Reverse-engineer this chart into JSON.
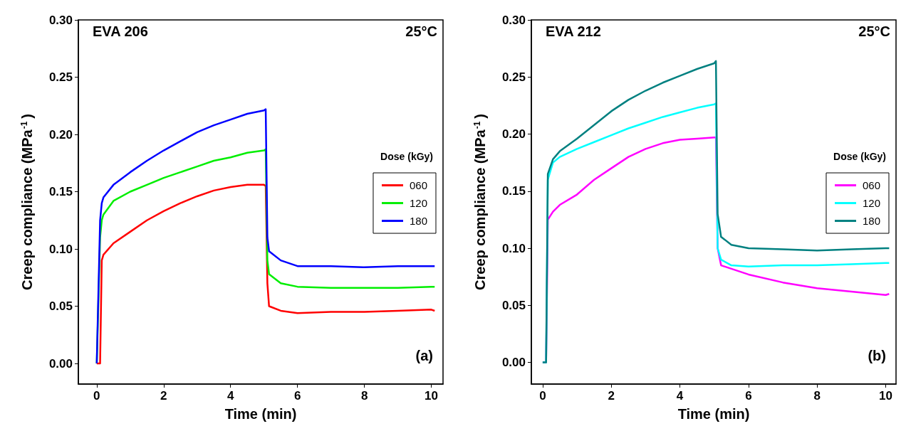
{
  "chart_data": [
    {
      "type": "line",
      "xlabel": "Time (min)",
      "ylabel": "Creep compliance (MPa$^{-1}$)",
      "legend_title": "Dose (kGy)",
      "legend": "right",
      "grid": false,
      "marker": "none",
      "line_style": "solid",
      "annotations": [
        "EVA 206",
        "25°C",
        "(a)"
      ],
      "xlim": [
        -0.55,
        10.35
      ],
      "xticks": [
        0,
        2,
        4,
        6,
        8,
        10
      ],
      "ylim": [
        -0.018,
        0.3
      ],
      "yticks": [
        {
          "value": 0,
          "label": "0.00"
        },
        {
          "value": 0.05,
          "label": "0.05"
        },
        {
          "value": 0.1,
          "label": "0.10"
        },
        {
          "value": 0.15,
          "label": "0.15"
        },
        {
          "value": 0.2,
          "label": "0.20"
        },
        {
          "value": 0.25,
          "label": "0.25"
        },
        {
          "value": 0.3,
          "label": "0.30"
        }
      ],
      "x": [
        0,
        0.1,
        0.15,
        0.2,
        0.5,
        1,
        1.5,
        2,
        2.5,
        3,
        3.5,
        4,
        4.5,
        5,
        5.05,
        5.1,
        5.15,
        5.5,
        6,
        7,
        8,
        9,
        10,
        10.1
      ],
      "series": [
        {
          "name": "060",
          "color": "#ff0000",
          "values": [
            0,
            0,
            0.09,
            0.095,
            0.105,
            0.115,
            0.125,
            0.133,
            0.14,
            0.146,
            0.151,
            0.154,
            0.156,
            0.156,
            0.155,
            0.07,
            0.05,
            0.046,
            0.044,
            0.045,
            0.045,
            0.046,
            0.047,
            0.046
          ]
        },
        {
          "name": "120",
          "color": "#00ee00",
          "values": [
            0,
            0.11,
            0.125,
            0.13,
            0.142,
            0.15,
            0.156,
            0.162,
            0.167,
            0.172,
            0.177,
            0.18,
            0.184,
            0.186,
            0.187,
            0.09,
            0.078,
            0.07,
            0.067,
            0.066,
            0.066,
            0.066,
            0.067,
            0.067
          ]
        },
        {
          "name": "180",
          "color": "#0000ff",
          "values": [
            0,
            0.125,
            0.14,
            0.145,
            0.156,
            0.167,
            0.177,
            0.186,
            0.194,
            0.202,
            0.208,
            0.213,
            0.218,
            0.221,
            0.222,
            0.11,
            0.098,
            0.09,
            0.085,
            0.085,
            0.084,
            0.085,
            0.085,
            0.085
          ]
        }
      ]
    },
    {
      "type": "line",
      "xlabel": "Time (min)",
      "ylabel": "Creep compliance (MPa$^{-1}$)",
      "legend_title": "Dose (kGy)",
      "legend": "right",
      "grid": false,
      "marker": "none",
      "line_style": "solid",
      "annotations": [
        "EVA 212",
        "25°C",
        "(b)"
      ],
      "xlim": [
        -0.33,
        10.3
      ],
      "xticks": [
        0,
        2,
        4,
        6,
        8,
        10
      ],
      "ylim": [
        -0.019,
        0.3
      ],
      "yticks": [
        {
          "value": 0,
          "label": "0.00"
        },
        {
          "value": 0.05,
          "label": "0.05"
        },
        {
          "value": 0.1,
          "label": "0.10"
        },
        {
          "value": 0.15,
          "label": "0.15"
        },
        {
          "value": 0.2,
          "label": "0.20"
        },
        {
          "value": 0.25,
          "label": "0.25"
        },
        {
          "value": 0.3,
          "label": "0.30"
        }
      ],
      "x": [
        0,
        0.1,
        0.15,
        0.3,
        0.5,
        1,
        1.5,
        2,
        2.5,
        3,
        3.5,
        4,
        4.5,
        5,
        5.05,
        5.1,
        5.2,
        5.5,
        6,
        7,
        8,
        9,
        10,
        10.1
      ],
      "series": [
        {
          "name": "060",
          "color": "#ff00ff",
          "values": [
            0,
            0,
            0.125,
            0.132,
            0.138,
            0.147,
            0.16,
            0.17,
            0.18,
            0.187,
            0.192,
            0.195,
            0.196,
            0.197,
            0.197,
            0.1,
            0.085,
            0.082,
            0.077,
            0.07,
            0.065,
            0.062,
            0.059,
            0.06
          ]
        },
        {
          "name": "120",
          "color": "#00ffff",
          "values": [
            0,
            0,
            0.16,
            0.175,
            0.18,
            0.187,
            0.193,
            0.199,
            0.205,
            0.21,
            0.215,
            0.219,
            0.223,
            0.226,
            0.227,
            0.1,
            0.09,
            0.085,
            0.084,
            0.085,
            0.085,
            0.086,
            0.087,
            0.087
          ]
        },
        {
          "name": "180",
          "color": "#008080",
          "values": [
            0,
            0,
            0.165,
            0.178,
            0.185,
            0.196,
            0.208,
            0.22,
            0.23,
            0.238,
            0.245,
            0.251,
            0.257,
            0.262,
            0.264,
            0.13,
            0.11,
            0.103,
            0.1,
            0.099,
            0.098,
            0.099,
            0.1,
            0.1
          ]
        }
      ]
    }
  ]
}
